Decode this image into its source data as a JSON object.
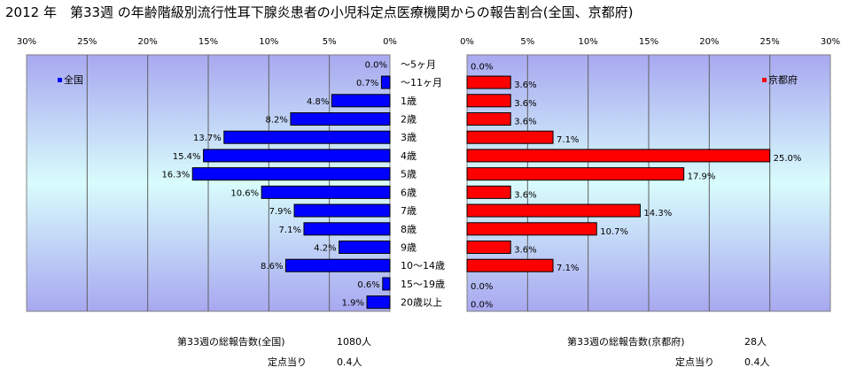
{
  "title": "2012 年　第33週 の年齢階級別流行性耳下腺炎患者の小児科定点医療機関からの報告割合(全国、京都府)",
  "chart_data": {
    "type": "bar",
    "orientation": "horizontal",
    "categories": [
      "～5ヶ月",
      "～11ヶ月",
      "1歳",
      "2歳",
      "3歳",
      "4歳",
      "5歳",
      "6歳",
      "7歳",
      "8歳",
      "9歳",
      "10～14歳",
      "15～19歳",
      "20歳以上"
    ],
    "series": [
      {
        "name": "全国",
        "color": "#0000ff",
        "values": [
          0.0,
          0.7,
          4.8,
          8.2,
          13.7,
          15.4,
          16.3,
          10.6,
          7.9,
          7.1,
          4.2,
          8.6,
          0.6,
          1.9
        ],
        "labels": [
          "0.0%",
          "0.7%",
          "4.8%",
          "8.2%",
          "13.7%",
          "15.4%",
          "16.3%",
          "10.6%",
          "7.9%",
          "7.1%",
          "4.2%",
          "8.6%",
          "0.6%",
          "1.9%"
        ]
      },
      {
        "name": "京都府",
        "color": "#ff0000",
        "values": [
          0.0,
          3.6,
          3.6,
          3.6,
          7.1,
          25.0,
          17.9,
          3.6,
          14.3,
          10.7,
          3.6,
          7.1,
          0.0,
          0.0
        ],
        "labels": [
          "0.0%",
          "3.6%",
          "3.6%",
          "3.6%",
          "7.1%",
          "25.0%",
          "17.9%",
          "3.6%",
          "14.3%",
          "10.7%",
          "3.6%",
          "7.1%",
          "0.0%",
          "0.0%"
        ]
      }
    ],
    "xlim": [
      0,
      30
    ],
    "left_ticks": [
      "30%",
      "25%",
      "20%",
      "15%",
      "10%",
      "5%",
      "0%"
    ],
    "right_ticks": [
      "0%",
      "5%",
      "10%",
      "15%",
      "20%",
      "25%",
      "30%"
    ],
    "grid": true
  },
  "footer": {
    "national_count_label": "第33週の総報告数(全国)",
    "national_count_value": "1080人",
    "national_per_label": "定点当り",
    "national_per_value": "0.4人",
    "kyoto_count_label": "第33週の総報告数(京都府)",
    "kyoto_count_value": "28人",
    "kyoto_per_label": "定点当り",
    "kyoto_per_value": "0.4人"
  }
}
